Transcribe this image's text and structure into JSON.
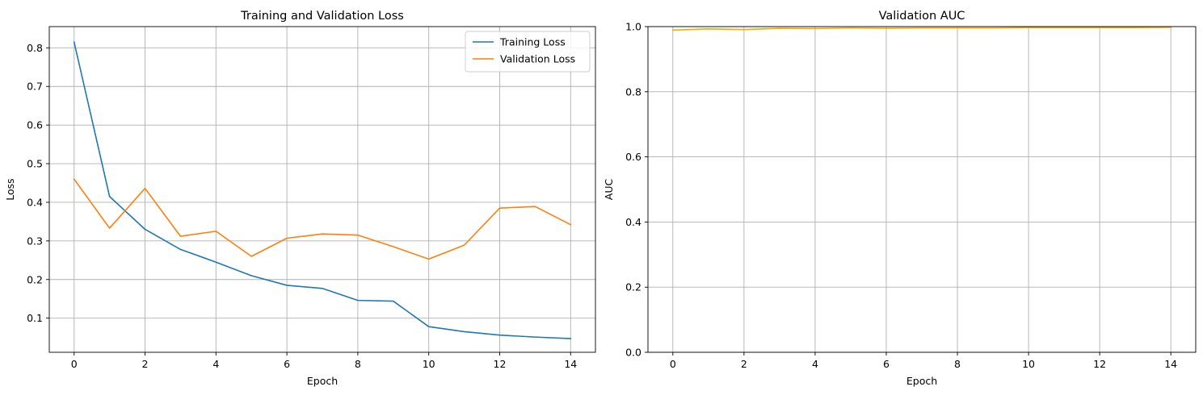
{
  "chart_data": [
    {
      "type": "line",
      "title": "Training and Validation Loss",
      "xlabel": "Epoch",
      "ylabel": "Loss",
      "xlim": [
        -0.7,
        14.7
      ],
      "ylim": [
        0.0116,
        0.855
      ],
      "xticks": [
        0,
        2,
        4,
        6,
        8,
        10,
        12,
        14
      ],
      "yticks": [
        0.1,
        0.2,
        0.3,
        0.4,
        0.5,
        0.6,
        0.7,
        0.8
      ],
      "grid": true,
      "legend": "top-right",
      "x": [
        0,
        1,
        2,
        3,
        4,
        5,
        6,
        7,
        8,
        9,
        10,
        11,
        12,
        13,
        14
      ],
      "series": [
        {
          "name": "Training Loss",
          "color": "#1f77b4",
          "values": [
            0.815,
            0.415,
            0.33,
            0.278,
            0.245,
            0.21,
            0.185,
            0.177,
            0.146,
            0.144,
            0.078,
            0.065,
            0.056,
            0.051,
            0.047
          ]
        },
        {
          "name": "Validation Loss",
          "color": "#ff7f0e",
          "values": [
            0.46,
            0.333,
            0.436,
            0.312,
            0.325,
            0.26,
            0.307,
            0.318,
            0.315,
            0.285,
            0.253,
            0.289,
            0.385,
            0.389,
            0.342
          ]
        }
      ]
    },
    {
      "type": "line",
      "title": "Validation AUC",
      "xlabel": "Epoch",
      "ylabel": "AUC",
      "xlim": [
        -0.7,
        14.7
      ],
      "ylim": [
        0.0,
        1.0
      ],
      "xticks": [
        0,
        2,
        4,
        6,
        8,
        10,
        12,
        14
      ],
      "yticks": [
        0.0,
        0.2,
        0.4,
        0.6,
        0.8,
        1.0
      ],
      "grid": true,
      "legend": "none",
      "x": [
        0,
        1,
        2,
        3,
        4,
        5,
        6,
        7,
        8,
        9,
        10,
        11,
        12,
        13,
        14
      ],
      "series": [
        {
          "color": "#ffa500",
          "values": [
            0.989,
            0.993,
            0.991,
            0.995,
            0.994,
            0.996,
            0.995,
            0.996,
            0.996,
            0.996,
            0.997,
            0.997,
            0.997,
            0.997,
            0.998
          ]
        }
      ]
    }
  ]
}
